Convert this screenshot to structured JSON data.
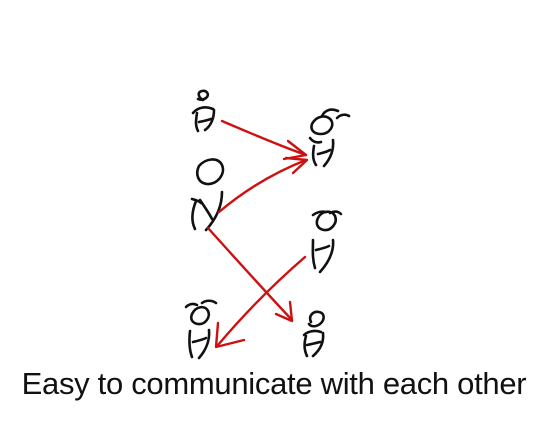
{
  "caption": "Easy to communicate with each other",
  "colors": {
    "arrow": "#cc1111",
    "figure": "#111111",
    "background": "#ffffff"
  },
  "people": [
    {
      "name": "person-top-left-small"
    },
    {
      "name": "person-center-left-large"
    },
    {
      "name": "person-top-right"
    },
    {
      "name": "person-mid-right"
    },
    {
      "name": "person-bottom-left"
    },
    {
      "name": "person-bottom-right"
    }
  ],
  "connections": [
    {
      "from": "person-top-left-small",
      "to": "person-top-right"
    },
    {
      "from": "person-center-left-large",
      "to": "person-top-right"
    },
    {
      "from": "person-center-left-large",
      "to": "person-bottom-right"
    },
    {
      "from": "person-mid-right",
      "to": "person-bottom-left"
    }
  ]
}
